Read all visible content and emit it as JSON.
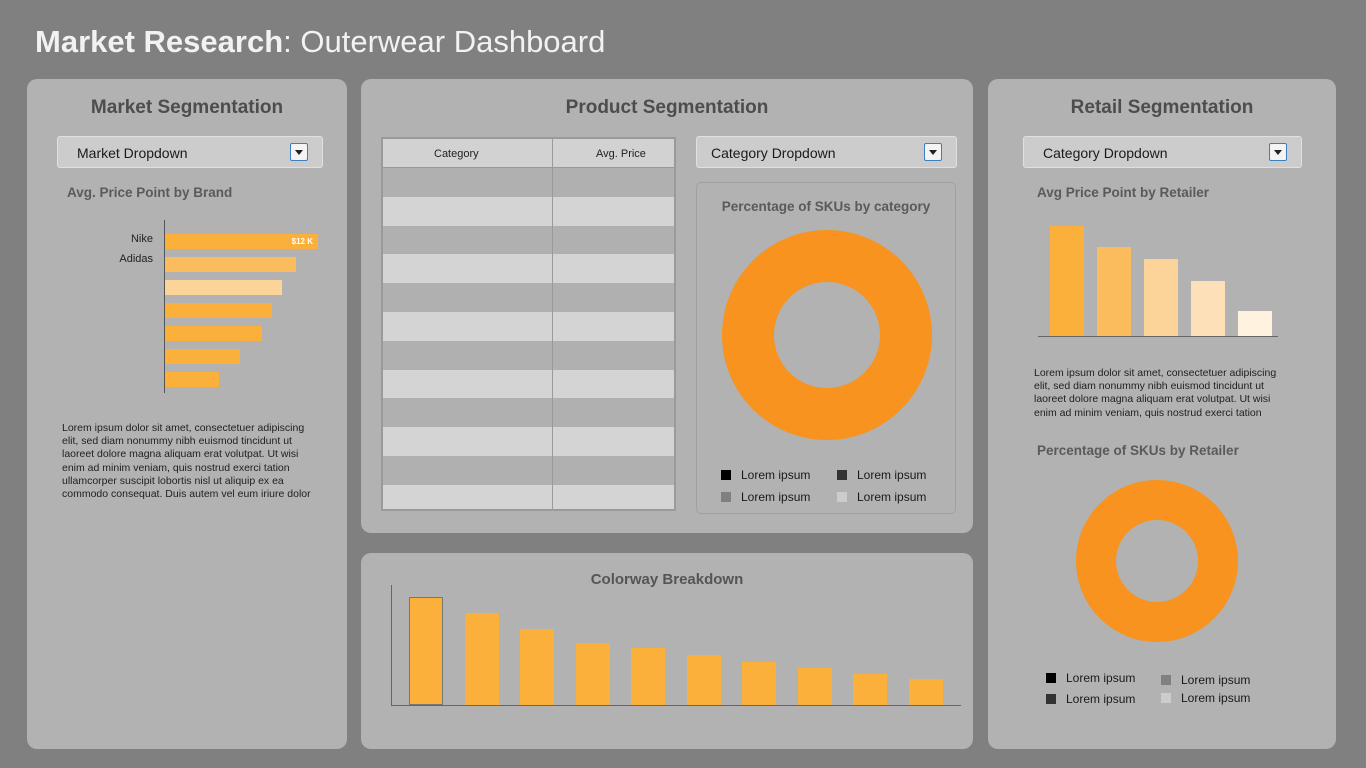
{
  "page": {
    "title_bold": "Market Research",
    "title_rest": ": Outerwear Dashboard"
  },
  "colors": {
    "orange": "#f7931e",
    "bar1": "#fbb03b",
    "bar2": "#fbbc5e",
    "bar3": "#fcd49a",
    "bar4": "#fde0b8",
    "bar5": "#fff3e0"
  },
  "market": {
    "title": "Market Segmentation",
    "dropdown_label": "Market Dropdown",
    "chart_title": "Avg. Price Point by Brand",
    "description": "Lorem ipsum dolor sit amet, consectetuer adipiscing elit, sed diam nonummy nibh euismod tincidunt ut laoreet dolore magna aliquam erat volutpat. Ut wisi enim ad minim veniam, quis nostrud exerci tation ullamcorper suscipit lobortis nisl ut aliquip ex ea commodo consequat. Duis autem vel eum iriure dolor"
  },
  "product": {
    "title": "Product Segmentation",
    "table_headers": [
      "Category",
      "Avg. Price"
    ],
    "dropdown_label": "Category Dropdown",
    "donut_title": "Percentage of SKUs by category",
    "legend": [
      {
        "label": "Lorem ipsum",
        "color": "#000000"
      },
      {
        "label": "Lorem ipsum",
        "color": "#333333"
      },
      {
        "label": "Lorem ipsum",
        "color": "#808080"
      },
      {
        "label": "Lorem ipsum",
        "color": "#cccccc"
      }
    ]
  },
  "colorway": {
    "title": "Colorway Breakdown"
  },
  "retail": {
    "title": "Retail Segmentation",
    "dropdown_label": "Category Dropdown",
    "chart_title": "Avg Price Point by Retailer",
    "description": "Lorem ipsum dolor sit amet, consectetuer adipiscing elit, sed diam nonummy nibh euismod tincidunt ut laoreet dolore magna aliquam erat volutpat. Ut wisi enim ad minim veniam, quis nostrud exerci tation",
    "donut_title": "Percentage of SKUs by Retailer",
    "legend": [
      {
        "label": "Lorem ipsum",
        "color": "#000000"
      },
      {
        "label": "Lorem ipsum",
        "color": "#808080"
      },
      {
        "label": "Lorem ipsum",
        "color": "#333333"
      },
      {
        "label": "Lorem ipsum",
        "color": "#cccccc"
      }
    ]
  },
  "chart_data": [
    {
      "type": "bar",
      "orientation": "horizontal",
      "categories": [
        "Nike",
        "Adidas",
        "",
        "",
        "",
        "",
        ""
      ],
      "values": [
        12,
        10.3,
        9.2,
        8.4,
        7.6,
        5.9,
        4.2
      ],
      "data_labels": [
        "$12 K",
        "",
        "",
        "",
        "",
        "",
        ""
      ],
      "colors": [
        "#fbb03b",
        "#fbbc5e",
        "#fcd49a",
        "#fbb03b",
        "#fbb03b",
        "#fbb03b",
        "#fbb03b"
      ]
    },
    {
      "type": "pie",
      "variant": "donut",
      "values": [
        100
      ]
    },
    {
      "type": "bar",
      "values": [
        100,
        85,
        70,
        57,
        53,
        46,
        40,
        34,
        29,
        24
      ],
      "colors": [
        "#fbb03b"
      ]
    },
    {
      "type": "bar",
      "values": [
        100,
        81,
        70,
        50,
        23
      ],
      "colors": [
        "#fbb03b",
        "#fbbc5e",
        "#fcd49a",
        "#fde0b8",
        "#fff3e0"
      ]
    },
    {
      "type": "pie",
      "variant": "donut",
      "values": [
        100
      ]
    }
  ]
}
